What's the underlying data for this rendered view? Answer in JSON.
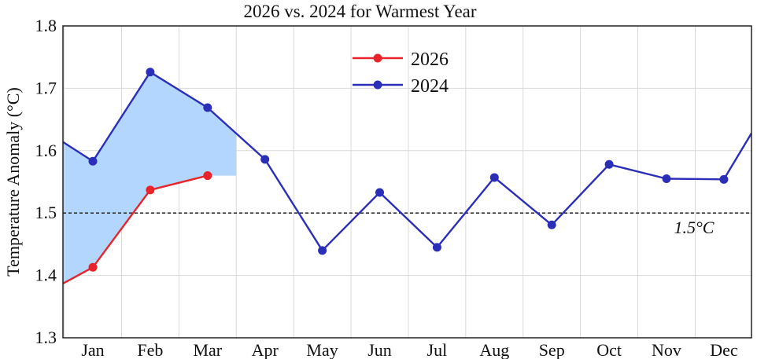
{
  "chart_data": {
    "type": "line",
    "title": "2026 vs. 2024 for Warmest Year",
    "xlabel": "",
    "ylabel": "Temperature Anomaly (°C)",
    "ylim": [
      1.3,
      1.8
    ],
    "yticks": [
      "1.3",
      "1.4",
      "1.5",
      "1.6",
      "1.7",
      "1.8"
    ],
    "categories": [
      "Jan",
      "Feb",
      "Mar",
      "Apr",
      "May",
      "Jun",
      "Jul",
      "Aug",
      "Sep",
      "Oct",
      "Nov",
      "Dec"
    ],
    "series": [
      {
        "name": "2026",
        "color": "#e8242a",
        "values": [
          1.413,
          1.537,
          1.56,
          null,
          null,
          null,
          null,
          null,
          null,
          null,
          null,
          null
        ],
        "start_value": 1.387
      },
      {
        "name": "2024",
        "color": "#2b2fb8",
        "values": [
          1.583,
          1.726,
          1.669,
          1.586,
          1.44,
          1.533,
          1.445,
          1.557,
          1.481,
          1.578,
          1.555,
          1.554
        ],
        "start_value": 1.614,
        "end_value": 1.628
      }
    ],
    "reference_line": {
      "value": 1.5,
      "label": "1.5°C"
    },
    "shaded_region": {
      "color": "#b3d6ff",
      "description_ref": "gap between 2024 and 2026"
    },
    "legend": {
      "position": "top-center"
    },
    "grid": true
  }
}
